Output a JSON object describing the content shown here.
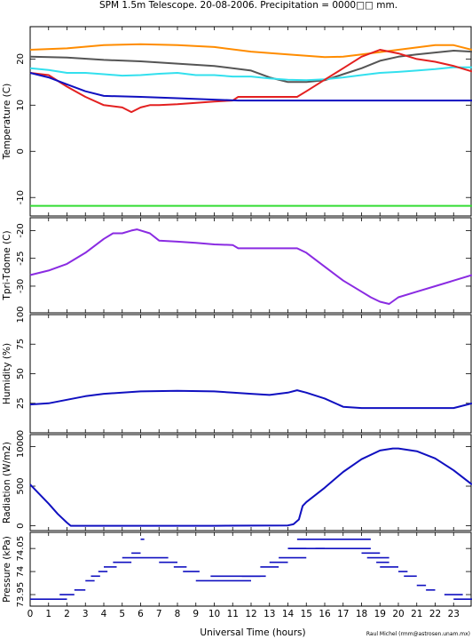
{
  "header": {
    "title": "SPM 1.5m Telescope. 20-08-2006. Precipitation = 0000□□ mm."
  },
  "footer": {
    "xlabel": "Universal Time (hours)",
    "credit": "Raul Michel (rmm@astrosen.unam.mx)"
  },
  "chart_data": [
    {
      "type": "line",
      "ylabel": "Temperature (C)",
      "xlim": [
        0,
        24
      ],
      "ylim": [
        -14,
        27
      ],
      "yticks": [
        -10,
        0,
        10,
        20
      ],
      "series": [
        {
          "color": "#ff8c00",
          "x": [
            0,
            2,
            4,
            6,
            8,
            10,
            12,
            14,
            16,
            17,
            18,
            20,
            22,
            23,
            24
          ],
          "y": [
            22,
            22.3,
            23,
            23.2,
            23,
            22.6,
            21.6,
            21,
            20.4,
            20.5,
            21,
            22,
            23,
            23,
            22
          ]
        },
        {
          "color": "#555555",
          "x": [
            0,
            2,
            4,
            6,
            8,
            10,
            12,
            13,
            14,
            15,
            16,
            17,
            18,
            19,
            20,
            21,
            22,
            23,
            24
          ],
          "y": [
            20.5,
            20.3,
            19.8,
            19.5,
            19,
            18.5,
            17.5,
            16,
            15,
            15,
            15.4,
            16.7,
            18,
            19.6,
            20.5,
            21,
            21.4,
            21.8,
            21.6
          ]
        },
        {
          "color": "#33e0ee",
          "x": [
            0,
            1,
            2,
            3,
            4,
            5,
            6,
            7,
            8,
            9,
            10,
            11,
            12,
            13,
            14,
            15,
            16,
            17,
            18,
            19,
            20,
            21,
            22,
            23,
            24
          ],
          "y": [
            18,
            17.6,
            17,
            17,
            16.7,
            16.4,
            16.5,
            16.8,
            17,
            16.5,
            16.5,
            16.2,
            16.2,
            15.8,
            15.5,
            15.4,
            15.6,
            16,
            16.5,
            17,
            17.2,
            17.5,
            17.8,
            18.2,
            18.2
          ]
        },
        {
          "color": "#e32020",
          "x": [
            0,
            1,
            2,
            3,
            4,
            5,
            5.5,
            6,
            6.5,
            7,
            8,
            9,
            10,
            11,
            11.3,
            14.5,
            15,
            16,
            17,
            18,
            19,
            20,
            21,
            22,
            23,
            24
          ],
          "y": [
            17,
            16.5,
            14,
            11.8,
            10,
            9.5,
            8.5,
            9.5,
            10,
            10,
            10.2,
            10.5,
            10.8,
            11,
            11.8,
            11.8,
            13,
            15.5,
            18,
            20.5,
            22,
            21.2,
            20,
            19.4,
            18.5,
            17.3
          ]
        },
        {
          "color": "#1010c0",
          "x": [
            0,
            1,
            2,
            3,
            4,
            6,
            8,
            10,
            11.3,
            12,
            24
          ],
          "y": [
            17,
            16,
            14.5,
            13,
            12,
            11.8,
            11.5,
            11.2,
            11,
            11,
            11
          ]
        },
        {
          "color": "#33dd33",
          "x": [
            0,
            24
          ],
          "y": [
            -11.8,
            -11.8
          ]
        }
      ]
    },
    {
      "type": "line",
      "ylabel": "Tpri-Tdome (C)",
      "xlim": [
        0,
        24
      ],
      "ylim": [
        -34.8,
        -17.7
      ],
      "yticks": [
        -30,
        -25,
        -20
      ],
      "series": [
        {
          "color": "#8a2be2",
          "x": [
            0,
            1,
            2,
            3,
            4,
            4.5,
            5,
            5.5,
            5.8,
            6.5,
            7,
            8,
            9,
            10,
            11,
            11.3,
            14.5,
            15,
            16,
            17,
            18,
            18.5,
            19,
            19.5,
            20,
            21,
            22,
            23,
            24
          ],
          "y": [
            -28,
            -27.2,
            -26,
            -24,
            -21.5,
            -20.5,
            -20.5,
            -20,
            -19.8,
            -20.5,
            -21.8,
            -22,
            -22.2,
            -22.5,
            -22.6,
            -23.2,
            -23.2,
            -24,
            -26.5,
            -29,
            -31,
            -32,
            -32.8,
            -33.2,
            -32,
            -31,
            -30,
            -29,
            -28
          ]
        }
      ]
    },
    {
      "type": "line",
      "ylabel": "Humidity (%)",
      "xlim": [
        0,
        24
      ],
      "ylim": [
        0,
        100
      ],
      "yticks": [
        0,
        25,
        50,
        75,
        100
      ],
      "series": [
        {
          "color": "#1010c0",
          "x": [
            0,
            1,
            2,
            3,
            4,
            6,
            8,
            10,
            11,
            12,
            13,
            14,
            14.5,
            15,
            16,
            17,
            18,
            19,
            20,
            21,
            22,
            23,
            24
          ],
          "y": [
            24,
            25,
            28,
            31,
            33,
            35,
            35.5,
            35,
            34,
            33,
            32,
            34,
            36,
            34,
            29,
            22,
            21,
            21,
            21,
            21,
            21,
            21,
            25
          ]
        }
      ]
    },
    {
      "type": "line",
      "ylabel": "Radiation (W/m2)",
      "xlim": [
        0,
        24
      ],
      "ylim": [
        -60,
        1150
      ],
      "yticks": [
        0,
        500,
        1000
      ],
      "series": [
        {
          "color": "#1010c0",
          "x": [
            0,
            0.5,
            1,
            1.5,
            2,
            2.2,
            3,
            6,
            10,
            14,
            14.3,
            14.6,
            14.8,
            15,
            16,
            17,
            18,
            19,
            19.7,
            20,
            21,
            22,
            23,
            24
          ],
          "y": [
            520,
            400,
            280,
            150,
            40,
            0,
            0,
            0,
            0,
            5,
            20,
            80,
            250,
            300,
            480,
            680,
            840,
            950,
            975,
            975,
            940,
            850,
            700,
            520
          ]
        }
      ]
    },
    {
      "type": "scatter",
      "ylabel": "Pressure (kPa)",
      "xlim": [
        0,
        24
      ],
      "ylim": [
        73.925,
        74.085
      ],
      "yticks": [
        73.95,
        74,
        74.05
      ],
      "series": [
        {
          "color": "#1010c0",
          "segments": [
            [
              0,
              2,
              73.94
            ],
            [
              1.6,
              2.4,
              73.95
            ],
            [
              2.4,
              3,
              73.96
            ],
            [
              3,
              3.5,
              73.98
            ],
            [
              3.3,
              3.8,
              73.99
            ],
            [
              3.7,
              4.2,
              74
            ],
            [
              4,
              4.7,
              74.01
            ],
            [
              4.5,
              5.5,
              74.02
            ],
            [
              5,
              7.5,
              74.03
            ],
            [
              5.5,
              6,
              74.04
            ],
            [
              6,
              6.2,
              74.07
            ],
            [
              7,
              8,
              74.02
            ],
            [
              7.8,
              8.5,
              74.01
            ],
            [
              8.3,
              9.2,
              74
            ],
            [
              9,
              12,
              73.98
            ],
            [
              9.8,
              12.5,
              73.99
            ],
            [
              11.5,
              12.8,
              73.99
            ],
            [
              12.5,
              13.5,
              74.01
            ],
            [
              13,
              14,
              74.02
            ],
            [
              13.5,
              15,
              74.03
            ],
            [
              14,
              15,
              74.05
            ],
            [
              14.5,
              18.5,
              74.07
            ],
            [
              14,
              16,
              74.05
            ],
            [
              15.5,
              18.5,
              74.05
            ],
            [
              18,
              19,
              74.04
            ],
            [
              18.3,
              19.5,
              74.03
            ],
            [
              18.8,
              19.5,
              74.02
            ],
            [
              19,
              20,
              74.01
            ],
            [
              20,
              20.5,
              74
            ],
            [
              20.3,
              21,
              73.99
            ],
            [
              21,
              21.5,
              73.97
            ],
            [
              21.5,
              22,
              73.96
            ],
            [
              22.5,
              23.5,
              73.95
            ],
            [
              23,
              24,
              73.94
            ]
          ]
        }
      ]
    }
  ],
  "xaxis": {
    "ticks": [
      0,
      1,
      2,
      3,
      4,
      5,
      6,
      7,
      8,
      9,
      10,
      11,
      12,
      13,
      14,
      15,
      16,
      17,
      18,
      19,
      20,
      21,
      22,
      23
    ]
  }
}
